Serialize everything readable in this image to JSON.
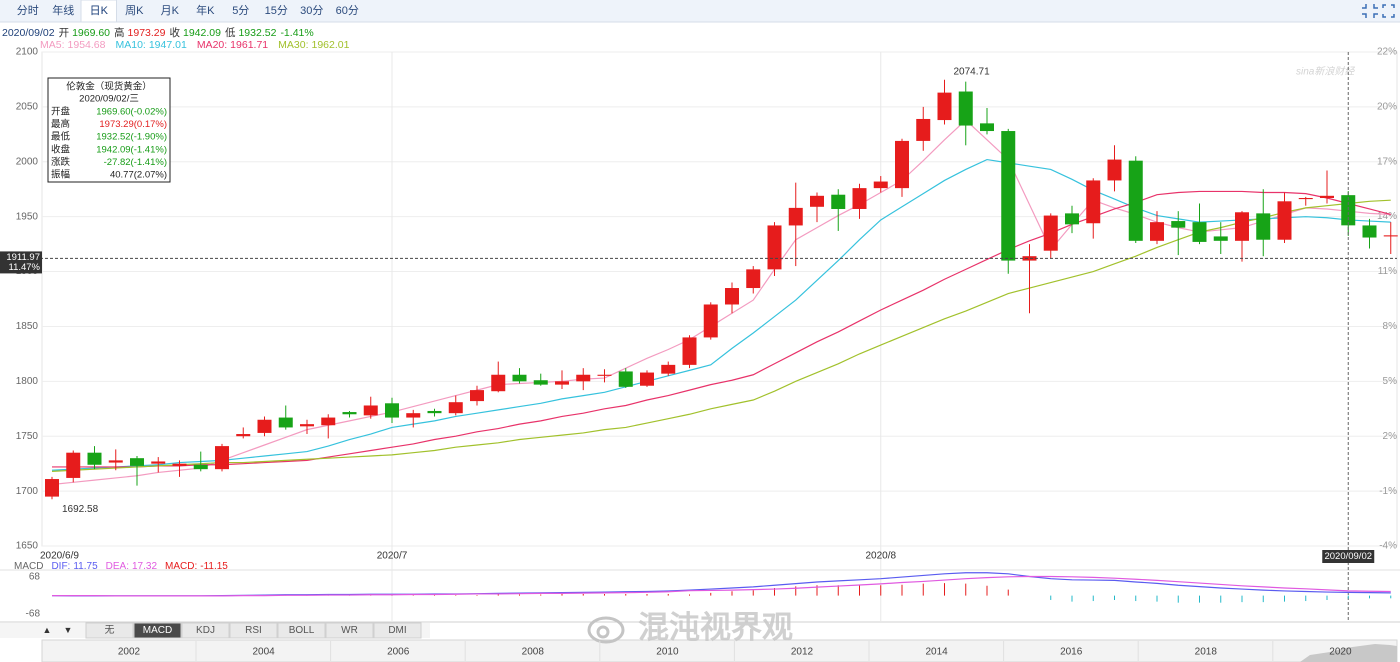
{
  "toolbar": {
    "tabs": [
      "分时",
      "年线",
      "日K",
      "周K",
      "月K",
      "年K",
      "5分",
      "15分",
      "30分",
      "60分"
    ],
    "active_tab": 2
  },
  "info": {
    "date": "2020/09/02",
    "fields": [
      {
        "label": "开",
        "text": "1969.60",
        "color": "#179c17"
      },
      {
        "label": "高",
        "text": "1973.29",
        "color": "#e22020"
      },
      {
        "label": "收",
        "text": "1942.09",
        "color": "#179c17"
      },
      {
        "label": "低",
        "text": "1932.52",
        "color": "#179c17"
      }
    ],
    "change": "-1.41%",
    "change_color": "#179c17"
  },
  "tooltip": {
    "title": "伦敦金（现货黄金）",
    "date": "2020/09/02/三",
    "rows": [
      {
        "label": "开盘",
        "text": "1969.60(-0.02%)",
        "color": "#179c17"
      },
      {
        "label": "最高",
        "text": "1973.29(0.17%)",
        "color": "#e22020"
      },
      {
        "label": "最低",
        "text": "1932.52(-1.90%)",
        "color": "#179c17"
      },
      {
        "label": "收盘",
        "text": "1942.09(-1.41%)",
        "color": "#179c17"
      },
      {
        "label": "涨跌",
        "text": "-27.82(-1.41%)",
        "color": "#179c17"
      },
      {
        "label": "振幅",
        "text": "40.77(2.07%)",
        "color": "#222222"
      }
    ]
  },
  "chart_data": [
    {
      "type": "candlestick",
      "categories": [
        "2020/6/9",
        null,
        null,
        null,
        null,
        null,
        null,
        null,
        null,
        null,
        null,
        null,
        null,
        null,
        null,
        null,
        "2020/7",
        null,
        null,
        null,
        null,
        null,
        null,
        null,
        null,
        null,
        null,
        null,
        null,
        null,
        null,
        null,
        null,
        null,
        null,
        null,
        null,
        null,
        null,
        "2020/8",
        null,
        null,
        null,
        null,
        null,
        null,
        null,
        null,
        null,
        null,
        null,
        null,
        null,
        null,
        null,
        null,
        null,
        null,
        null,
        null,
        null,
        "2020/09/02",
        null,
        null
      ],
      "open": [
        1695,
        1712,
        1735,
        1726,
        1730,
        1725,
        1723,
        1724,
        1720,
        1750,
        1753,
        1767,
        1759,
        1760,
        1772,
        1769,
        1780,
        1767,
        1773,
        1771,
        1782,
        1791,
        1806,
        1801,
        1797,
        1800,
        1805,
        1809,
        1796,
        1807,
        1815,
        1840,
        1870,
        1885,
        1902,
        1942,
        1959,
        1970,
        1957,
        1976,
        1976,
        2019,
        2038,
        2064,
        2035,
        2028,
        1910,
        1919,
        1953,
        1944,
        1983,
        2001,
        1928,
        1946,
        1945,
        1932,
        1928,
        1953,
        1929,
        1966,
        1967,
        1969.6,
        1942,
        1932
      ],
      "high": [
        1713,
        1737,
        1741,
        1738,
        1732,
        1731,
        1728,
        1736,
        1743,
        1758,
        1768,
        1778,
        1765,
        1770,
        1773,
        1786,
        1785,
        1774,
        1775,
        1787,
        1796,
        1818,
        1812,
        1807,
        1810,
        1812,
        1811,
        1812,
        1810,
        1818,
        1842,
        1872,
        1890,
        1905,
        1945,
        1981,
        1972,
        1975,
        1980,
        1987,
        2021,
        2050,
        2074.71,
        2073,
        2049,
        2030,
        1925,
        1953,
        1960,
        1985,
        2015,
        2005,
        1955,
        1955,
        1962,
        1945,
        1955,
        1975,
        1972,
        1968,
        1992,
        1973.29,
        1948,
        1945
      ],
      "low": [
        1692.58,
        1708,
        1720,
        1719,
        1705,
        1717,
        1713,
        1718,
        1718,
        1748,
        1750,
        1756,
        1752,
        1748,
        1767,
        1766,
        1762,
        1758,
        1768,
        1769,
        1778,
        1790,
        1798,
        1796,
        1793,
        1792,
        1799,
        1794,
        1795,
        1805,
        1812,
        1838,
        1862,
        1880,
        1896,
        1905,
        1945,
        1937,
        1948,
        1972,
        1968,
        2010,
        2034,
        2015,
        2025,
        1898,
        1862,
        1912,
        1935,
        1930,
        1973,
        1926,
        1925,
        1915,
        1925,
        1916,
        1909,
        1914,
        1926,
        1960,
        1962,
        1932.52,
        1921,
        1916
      ],
      "close": [
        1711,
        1735,
        1724,
        1728,
        1723,
        1727,
        1725,
        1720,
        1741,
        1752,
        1765,
        1758,
        1761,
        1767,
        1770,
        1778,
        1767,
        1771,
        1771,
        1781,
        1792,
        1806,
        1800,
        1797,
        1800,
        1806,
        1806,
        1795,
        1808,
        1815,
        1840,
        1870,
        1885,
        1902,
        1942,
        1958,
        1969,
        1957,
        1976,
        1982,
        2019,
        2039,
        2063,
        2033,
        2028,
        1910,
        1914,
        1951,
        1943,
        1983,
        2002,
        1928,
        1945,
        1940,
        1927,
        1928,
        1954,
        1929,
        1964,
        1967,
        1969,
        1942.09,
        1931,
        1933
      ],
      "up_color": "#e61c1c",
      "down_color": "#17a317",
      "series": [
        {
          "name": "MA5:",
          "current": 1954.68,
          "color": "#f39bc0",
          "values": [
            1706,
            1708,
            1710,
            1712,
            1714,
            1717,
            1719,
            1721,
            1728,
            1735,
            1742,
            1749,
            1756,
            1760,
            1764,
            1768,
            1772,
            1777,
            1782,
            1787,
            1792,
            1797,
            1798,
            1799,
            1800,
            1802,
            1803,
            1812,
            1821,
            1829,
            1838,
            1850,
            1862,
            1874,
            1902,
            1929,
            1940,
            1951,
            1961,
            1972,
            1983,
            2001,
            2020,
            2038,
            2020,
            2002,
            1961,
            1920,
            1943,
            1965,
            1958,
            1952,
            1945,
            1940,
            1936,
            1938,
            1940,
            1946,
            1952,
            1958,
            1957,
            1955,
            1953,
            1952
          ]
        },
        {
          "name": "MA10:",
          "current": 1947.01,
          "color": "#36c2dd",
          "values": [
            1719,
            1720,
            1721,
            1722,
            1723,
            1724,
            1726,
            1727,
            1728,
            1730,
            1732,
            1734,
            1736,
            1741,
            1747,
            1752,
            1758,
            1761,
            1764,
            1768,
            1771,
            1774,
            1777,
            1780,
            1784,
            1787,
            1790,
            1795,
            1800,
            1805,
            1810,
            1815,
            1830,
            1844,
            1859,
            1874,
            1892,
            1910,
            1929,
            1947,
            1959,
            1971,
            1983,
            1993,
            2002,
            1999,
            1996,
            1993,
            1984,
            1974,
            1966,
            1958,
            1951,
            1948,
            1945,
            1946,
            1947,
            1948,
            1949,
            1950,
            1949,
            1947,
            1946,
            1945
          ]
        },
        {
          "name": "MA20:",
          "current": 1961.71,
          "color": "#e8336a",
          "values": [
            1722,
            1722,
            1722,
            1722,
            1722,
            1723,
            1723,
            1724,
            1724,
            1725,
            1726,
            1727,
            1728,
            1731,
            1734,
            1737,
            1740,
            1743,
            1747,
            1750,
            1754,
            1757,
            1761,
            1764,
            1768,
            1771,
            1775,
            1778,
            1783,
            1787,
            1792,
            1797,
            1801,
            1806,
            1816,
            1826,
            1836,
            1845,
            1855,
            1865,
            1874,
            1883,
            1893,
            1902,
            1911,
            1920,
            1928,
            1935,
            1943,
            1950,
            1957,
            1963,
            1970,
            1972,
            1973,
            1973,
            1973,
            1972,
            1972,
            1971,
            1967,
            1962,
            1957,
            1952
          ]
        },
        {
          "name": "MA30:",
          "current": 1962.01,
          "color": "#a2c12c",
          "values": [
            1718,
            1719,
            1720,
            1721,
            1722,
            1723,
            1724,
            1725,
            1726,
            1726,
            1727,
            1728,
            1729,
            1730,
            1731,
            1732,
            1733,
            1735,
            1737,
            1740,
            1742,
            1744,
            1747,
            1749,
            1751,
            1753,
            1756,
            1758,
            1762,
            1766,
            1770,
            1775,
            1779,
            1783,
            1791,
            1800,
            1808,
            1816,
            1825,
            1833,
            1841,
            1849,
            1857,
            1864,
            1872,
            1880,
            1885,
            1890,
            1895,
            1900,
            1907,
            1914,
            1922,
            1929,
            1936,
            1940,
            1945,
            1949,
            1954,
            1958,
            1960,
            1962,
            1964,
            1965
          ]
        }
      ],
      "extreme_labels": true,
      "ylim": [
        1650,
        2100
      ],
      "yticks": [
        1650,
        1700,
        1750,
        1800,
        1850,
        1900,
        1950,
        2000,
        2050,
        2100
      ],
      "y2lim": [
        -3.8,
        22.43
      ],
      "y2ticks": [
        {
          "value": -3.8,
          "label": "-4%"
        },
        {
          "value": -0.89,
          "label": "-1%"
        },
        {
          "value": 2.03,
          "label": "2%"
        },
        {
          "value": 4.94,
          "label": "5%"
        },
        {
          "value": 7.86,
          "label": "8%"
        },
        {
          "value": 10.77,
          "label": "11%"
        },
        {
          "value": 13.69,
          "label": "14%"
        },
        {
          "value": 16.6,
          "label": "17%"
        },
        {
          "value": 19.52,
          "label": "20%"
        },
        {
          "value": 22.43,
          "label": "22%"
        }
      ],
      "grid": true,
      "crosshair": {
        "category": 61,
        "price": 1911.97,
        "change": "11.47%"
      }
    },
    {
      "type": "macd",
      "title": "MACD",
      "series": [
        {
          "name": "DIF:",
          "current": 11.75,
          "color": "#5a5cf0",
          "values": [
            0,
            -1,
            -1,
            -1,
            -1,
            -1,
            -1,
            -1,
            0,
            1,
            2,
            3,
            3,
            4,
            4,
            5,
            5,
            5,
            6,
            6,
            7,
            8,
            9,
            10,
            11,
            12,
            13,
            14,
            15,
            17,
            20,
            24,
            28,
            32,
            38,
            44,
            50,
            54,
            58,
            62,
            68,
            74,
            80,
            84,
            84,
            80,
            70,
            62,
            58,
            57,
            56,
            50,
            45,
            38,
            33,
            28,
            24,
            20,
            17,
            15,
            13,
            11.75,
            11,
            10
          ]
        },
        {
          "name": "DEA:",
          "current": 17.32,
          "color": "#e05ae0",
          "values": [
            0,
            0,
            0,
            -1,
            -1,
            -1,
            -1,
            -1,
            -1,
            0,
            0,
            1,
            1,
            2,
            2,
            3,
            3,
            4,
            4,
            5,
            6,
            6,
            7,
            8,
            8,
            9,
            10,
            11,
            12,
            14,
            18,
            19,
            20,
            22,
            24,
            27,
            31,
            35,
            39,
            43,
            48,
            52,
            57,
            62,
            66,
            69,
            70,
            70,
            69,
            67,
            64,
            60,
            56,
            51,
            46,
            41,
            36,
            32,
            28,
            25,
            21,
            17.32,
            16,
            15
          ]
        }
      ],
      "histogram": {
        "name": "MACD:",
        "current": -11.15,
        "up_color": "#e61c1c",
        "down_color": "#22b8c8",
        "values": [
          0,
          -2,
          -2,
          0,
          0,
          0,
          0,
          0,
          2,
          2,
          4,
          4,
          4,
          4,
          4,
          4,
          4,
          2,
          4,
          2,
          2,
          4,
          4,
          4,
          6,
          6,
          6,
          6,
          6,
          6,
          4,
          10,
          16,
          20,
          28,
          34,
          38,
          38,
          38,
          38,
          40,
          44,
          46,
          44,
          36,
          22,
          0,
          -16,
          -22,
          -20,
          -16,
          -20,
          -22,
          -26,
          -26,
          -26,
          -24,
          -24,
          -22,
          -20,
          -16,
          -11.15,
          -10,
          -10
        ]
      },
      "ylim": [
        -97,
        94
      ],
      "yticks": [
        -68,
        68
      ]
    }
  ],
  "indicators": {
    "tabs": [
      "无",
      "MACD",
      "KDJ",
      "RSI",
      "BOLL",
      "WR",
      "DMI"
    ],
    "active": 1,
    "up": "▲",
    "down": "▼"
  },
  "navigator": {
    "years": [
      "2002",
      "2004",
      "2006",
      "2008",
      "2010",
      "2012",
      "2014",
      "2016",
      "2018",
      "2020"
    ]
  },
  "watermark": "混沌视界观",
  "logo": "sina新浪财经"
}
